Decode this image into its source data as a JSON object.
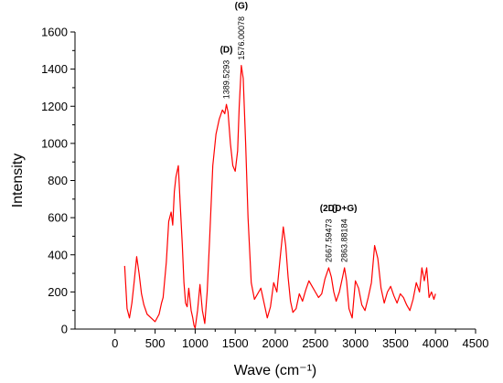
{
  "chart_data": {
    "type": "line",
    "title": "",
    "xlabel": "Wave (cm⁻¹)",
    "ylabel": "Intensity",
    "xlim": [
      -500,
      4500
    ],
    "ylim": [
      0,
      1600
    ],
    "xticks": [
      0,
      500,
      1000,
      1500,
      2000,
      2500,
      3000,
      3500,
      4000,
      4500
    ],
    "yticks": [
      0,
      200,
      400,
      600,
      800,
      1000,
      1200,
      1400,
      1600
    ],
    "line_color": "#ff0000",
    "grid": false,
    "series": [
      {
        "x": [
          120,
          150,
          180,
          210,
          240,
          270,
          300,
          330,
          360,
          400,
          450,
          500,
          550,
          580,
          600,
          640,
          670,
          700,
          720,
          740,
          760,
          790,
          810,
          840,
          860,
          880,
          900,
          920,
          950,
          970,
          985,
          1000,
          1030,
          1060,
          1090,
          1120,
          1150,
          1180,
          1220,
          1260,
          1300,
          1340,
          1370,
          1390,
          1410,
          1440,
          1470,
          1500,
          1530,
          1550,
          1576,
          1600,
          1630,
          1660,
          1700,
          1740,
          1780,
          1820,
          1860,
          1900,
          1940,
          1980,
          2020,
          2060,
          2100,
          2130,
          2160,
          2190,
          2220,
          2260,
          2300,
          2340,
          2380,
          2420,
          2460,
          2500,
          2540,
          2580,
          2620,
          2667,
          2700,
          2730,
          2760,
          2800,
          2840,
          2864,
          2890,
          2920,
          2960,
          3000,
          3040,
          3080,
          3120,
          3160,
          3200,
          3240,
          3280,
          3320,
          3360,
          3400,
          3440,
          3480,
          3520,
          3560,
          3600,
          3640,
          3680,
          3720,
          3760,
          3800,
          3830,
          3860,
          3890,
          3920,
          3950,
          3980,
          4000
        ],
        "y": [
          340,
          110,
          60,
          140,
          260,
          390,
          300,
          190,
          130,
          80,
          60,
          40,
          80,
          140,
          170,
          360,
          580,
          630,
          560,
          740,
          820,
          880,
          700,
          450,
          250,
          140,
          120,
          220,
          100,
          60,
          20,
          5,
          100,
          240,
          100,
          30,
          200,
          480,
          880,
          1050,
          1130,
          1180,
          1160,
          1210,
          1170,
          1000,
          880,
          850,
          960,
          1200,
          1420,
          1350,
          1000,
          600,
          250,
          160,
          190,
          220,
          140,
          60,
          120,
          250,
          200,
          380,
          550,
          450,
          280,
          150,
          90,
          110,
          190,
          150,
          210,
          260,
          230,
          200,
          170,
          190,
          270,
          330,
          280,
          200,
          150,
          200,
          280,
          330,
          260,
          110,
          60,
          260,
          220,
          130,
          100,
          170,
          250,
          450,
          380,
          220,
          140,
          200,
          230,
          180,
          140,
          190,
          170,
          130,
          100,
          160,
          250,
          200,
          330,
          260,
          330,
          170,
          200,
          160,
          190
        ]
      }
    ],
    "peak_labels": [
      {
        "name": "(D)",
        "value": "1389.5293",
        "x": 1389.5293,
        "y": 1210
      },
      {
        "name": "(G)",
        "value": "1576.00078",
        "x": 1576.00078,
        "y": 1420
      },
      {
        "name": "(2D)",
        "value": "2667.59473",
        "x": 2667.59473,
        "y": 330
      },
      {
        "name": "(D+G)",
        "value": "2863.88184",
        "x": 2863.88184,
        "y": 330
      }
    ]
  }
}
